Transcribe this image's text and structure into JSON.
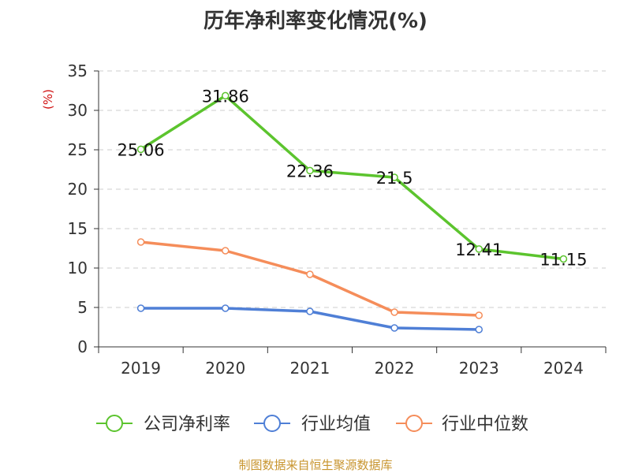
{
  "chart_data": {
    "type": "line",
    "title": "历年净利率变化情况(%)",
    "ylabel": "(%)",
    "xlabel": "",
    "categories": [
      "2019",
      "2020",
      "2021",
      "2022",
      "2023",
      "2024"
    ],
    "ylim": [
      0,
      35
    ],
    "yticks": [
      0,
      5,
      10,
      15,
      20,
      25,
      30,
      35
    ],
    "grid": true,
    "legend_position": "bottom",
    "series": [
      {
        "name": "公司净利率",
        "color": "#5cc42e",
        "values": [
          25.06,
          31.86,
          22.36,
          21.5,
          12.41,
          11.15
        ],
        "labels": [
          "25.06",
          "31.86",
          "22.36",
          "21.5",
          "12.41",
          "11.15"
        ]
      },
      {
        "name": "行业均值",
        "color": "#4f7fd6",
        "values": [
          4.9,
          4.9,
          4.5,
          2.4,
          2.2,
          null
        ]
      },
      {
        "name": "行业中位数",
        "color": "#f58d5a",
        "values": [
          13.3,
          12.2,
          9.2,
          4.4,
          4.0,
          null
        ]
      }
    ]
  },
  "source": "制图数据来自恒生聚源数据库"
}
